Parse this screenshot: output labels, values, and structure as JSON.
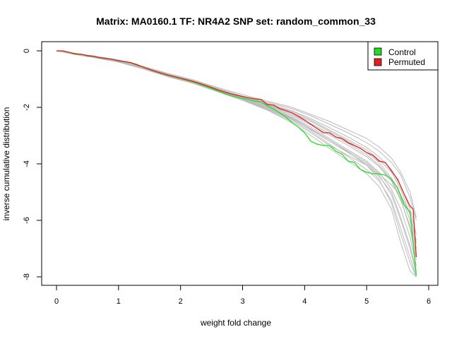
{
  "chart_data": {
    "type": "line",
    "title": "Matrix: MA0160.1 TF: NR4A2 SNP set: random_common_33",
    "xlabel": "weight fold change",
    "ylabel": "inverse cumulative distribution",
    "xlim": [
      0,
      6
    ],
    "ylim": [
      -8,
      0
    ],
    "xticks": [
      0,
      1,
      2,
      3,
      4,
      5,
      6
    ],
    "yticks": [
      0,
      -2,
      -4,
      -6,
      -8
    ],
    "grid": false,
    "legend_position": "top-right",
    "colors": {
      "control": "#22dd22",
      "permuted": "#dd2222",
      "background": "#bbbbbb"
    },
    "series": [
      {
        "name": "Control",
        "color": "#22dd22",
        "x": [
          0,
          0.1,
          0.2,
          0.3,
          0.4,
          0.5,
          0.6,
          0.7,
          0.8,
          0.9,
          1.0,
          1.1,
          1.2,
          1.3,
          1.4,
          1.5,
          1.6,
          1.8,
          2.0,
          2.2,
          2.4,
          2.6,
          2.8,
          3.0,
          3.1,
          3.2,
          3.3,
          3.4,
          3.5,
          3.6,
          3.7,
          3.8,
          3.9,
          4.0,
          4.1,
          4.2,
          4.3,
          4.4,
          4.5,
          4.6,
          4.7,
          4.8,
          4.9,
          5.0,
          5.1,
          5.2,
          5.3,
          5.4,
          5.5,
          5.6,
          5.7,
          5.75,
          5.8
        ],
        "values": [
          0,
          0,
          -0.05,
          -0.12,
          -0.12,
          -0.18,
          -0.2,
          -0.25,
          -0.27,
          -0.3,
          -0.36,
          -0.38,
          -0.42,
          -0.48,
          -0.58,
          -0.66,
          -0.74,
          -0.87,
          -0.98,
          -1.1,
          -1.25,
          -1.42,
          -1.58,
          -1.68,
          -1.72,
          -1.78,
          -1.8,
          -1.95,
          -2.05,
          -2.2,
          -2.35,
          -2.55,
          -2.7,
          -2.9,
          -3.2,
          -3.3,
          -3.35,
          -3.35,
          -3.55,
          -3.65,
          -3.9,
          -3.95,
          -4.2,
          -4.3,
          -4.35,
          -4.35,
          -4.4,
          -4.55,
          -4.85,
          -5.45,
          -5.7,
          -6.8,
          -7.95
        ]
      },
      {
        "name": "Permuted",
        "color": "#dd2222",
        "x": [
          0,
          0.1,
          0.2,
          0.3,
          0.4,
          0.5,
          0.6,
          0.7,
          0.8,
          0.9,
          1.0,
          1.1,
          1.2,
          1.3,
          1.4,
          1.5,
          1.6,
          1.8,
          2.0,
          2.2,
          2.4,
          2.6,
          2.8,
          3.0,
          3.1,
          3.2,
          3.3,
          3.4,
          3.5,
          3.6,
          3.7,
          3.8,
          3.9,
          4.0,
          4.1,
          4.2,
          4.3,
          4.4,
          4.5,
          4.6,
          4.7,
          4.8,
          4.9,
          5.0,
          5.1,
          5.2,
          5.3,
          5.4,
          5.5,
          5.6,
          5.7,
          5.75,
          5.8
        ],
        "values": [
          0,
          0,
          -0.05,
          -0.1,
          -0.12,
          -0.17,
          -0.19,
          -0.24,
          -0.27,
          -0.3,
          -0.35,
          -0.38,
          -0.42,
          -0.5,
          -0.58,
          -0.66,
          -0.73,
          -0.86,
          -0.97,
          -1.08,
          -1.22,
          -1.38,
          -1.52,
          -1.62,
          -1.66,
          -1.7,
          -1.72,
          -1.9,
          -1.92,
          -2.05,
          -2.12,
          -2.2,
          -2.32,
          -2.45,
          -2.6,
          -2.75,
          -2.9,
          -2.9,
          -3.05,
          -3.1,
          -3.25,
          -3.35,
          -3.45,
          -3.6,
          -3.7,
          -3.9,
          -3.95,
          -4.25,
          -4.55,
          -5.05,
          -5.5,
          -5.6,
          -7.3
        ]
      }
    ],
    "background_series": [
      {
        "x": [
          0,
          0.3,
          0.6,
          1.0,
          1.4,
          1.8,
          2.2,
          2.6,
          3.0,
          3.4,
          3.8,
          4.1,
          4.4,
          4.7,
          5.0,
          5.2,
          5.4,
          5.55,
          5.7,
          5.8
        ],
        "values": [
          0,
          -0.1,
          -0.2,
          -0.34,
          -0.56,
          -0.82,
          -1.05,
          -1.35,
          -1.6,
          -1.82,
          -2.05,
          -2.3,
          -2.6,
          -2.9,
          -3.25,
          -3.55,
          -3.95,
          -4.4,
          -5.2,
          -6.0
        ]
      },
      {
        "x": [
          0,
          0.3,
          0.6,
          1.0,
          1.4,
          1.8,
          2.2,
          2.6,
          3.0,
          3.4,
          3.8,
          4.1,
          4.4,
          4.7,
          5.0,
          5.2,
          5.4,
          5.55,
          5.7,
          5.8
        ],
        "values": [
          0,
          -0.12,
          -0.22,
          -0.38,
          -0.62,
          -0.9,
          -1.12,
          -1.42,
          -1.72,
          -2.05,
          -2.45,
          -2.85,
          -3.3,
          -3.75,
          -4.2,
          -4.6,
          -5.3,
          -6.3,
          -7.3,
          -8.0
        ]
      },
      {
        "x": [
          0,
          0.3,
          0.6,
          1.0,
          1.4,
          1.8,
          2.2,
          2.6,
          3.0,
          3.4,
          3.8,
          4.1,
          4.4,
          4.7,
          5.0,
          5.2,
          5.4,
          5.55,
          5.7,
          5.8
        ],
        "values": [
          0,
          -0.1,
          -0.18,
          -0.32,
          -0.55,
          -0.8,
          -1.02,
          -1.3,
          -1.55,
          -1.78,
          -2.0,
          -2.25,
          -2.5,
          -2.8,
          -3.1,
          -3.4,
          -3.8,
          -4.3,
          -5.0,
          -5.9
        ]
      },
      {
        "x": [
          0,
          0.3,
          0.6,
          1.0,
          1.4,
          1.8,
          2.2,
          2.6,
          3.0,
          3.4,
          3.8,
          4.1,
          4.4,
          4.7,
          5.0,
          5.2,
          5.4,
          5.55,
          5.7,
          5.8
        ],
        "values": [
          0,
          -0.11,
          -0.21,
          -0.36,
          -0.6,
          -0.88,
          -1.1,
          -1.4,
          -1.68,
          -1.98,
          -2.35,
          -2.7,
          -3.1,
          -3.5,
          -3.9,
          -4.3,
          -4.9,
          -5.6,
          -6.6,
          -7.6
        ]
      },
      {
        "x": [
          0,
          0.3,
          0.6,
          1.0,
          1.4,
          1.8,
          2.2,
          2.6,
          3.0,
          3.4,
          3.8,
          4.1,
          4.4,
          4.7,
          5.0,
          5.2,
          5.4,
          5.55,
          5.7,
          5.8
        ],
        "values": [
          0,
          -0.1,
          -0.2,
          -0.35,
          -0.58,
          -0.85,
          -1.08,
          -1.36,
          -1.64,
          -1.9,
          -2.2,
          -2.5,
          -2.85,
          -3.2,
          -3.6,
          -3.95,
          -4.5,
          -5.1,
          -6.0,
          -7.0
        ]
      },
      {
        "x": [
          0,
          0.3,
          0.6,
          1.0,
          1.4,
          1.8,
          2.2,
          2.6,
          3.0,
          3.4,
          3.8,
          4.1,
          4.4,
          4.7,
          5.0,
          5.2,
          5.4,
          5.55,
          5.7,
          5.8
        ],
        "values": [
          0,
          -0.13,
          -0.24,
          -0.4,
          -0.64,
          -0.92,
          -1.15,
          -1.45,
          -1.75,
          -2.1,
          -2.55,
          -3.0,
          -3.45,
          -3.9,
          -4.35,
          -4.8,
          -5.6,
          -6.8,
          -7.8,
          -8.0
        ]
      },
      {
        "x": [
          0,
          0.3,
          0.6,
          1.0,
          1.4,
          1.8,
          2.2,
          2.6,
          3.0,
          3.4,
          3.8,
          4.1,
          4.4,
          4.7,
          5.0,
          5.2,
          5.4,
          5.55,
          5.7,
          5.8
        ],
        "values": [
          0,
          -0.09,
          -0.19,
          -0.33,
          -0.56,
          -0.83,
          -1.05,
          -1.33,
          -1.6,
          -1.86,
          -2.12,
          -2.4,
          -2.72,
          -3.05,
          -3.42,
          -3.75,
          -4.2,
          -4.8,
          -5.6,
          -6.5
        ]
      },
      {
        "x": [
          0,
          0.3,
          0.6,
          1.0,
          1.4,
          1.8,
          2.2,
          2.6,
          3.0,
          3.4,
          3.8,
          4.1,
          4.4,
          4.7,
          5.0,
          5.2,
          5.4,
          5.55,
          5.7,
          5.8
        ],
        "values": [
          0,
          -0.12,
          -0.23,
          -0.39,
          -0.63,
          -0.9,
          -1.13,
          -1.43,
          -1.73,
          -2.08,
          -2.5,
          -2.9,
          -3.35,
          -3.7,
          -4.05,
          -4.45,
          -5.0,
          -5.9,
          -6.9,
          -7.8
        ]
      },
      {
        "x": [
          0,
          0.3,
          0.6,
          1.0,
          1.4,
          1.8,
          2.2,
          2.6,
          3.0,
          3.4,
          3.8,
          4.1,
          4.4,
          4.7,
          5.0,
          5.2,
          5.4,
          5.55,
          5.7,
          5.8
        ],
        "values": [
          0,
          -0.1,
          -0.2,
          -0.34,
          -0.57,
          -0.84,
          -1.06,
          -1.34,
          -1.62,
          -1.88,
          -2.15,
          -2.45,
          -2.8,
          -3.15,
          -3.5,
          -3.85,
          -4.3,
          -4.9,
          -5.8,
          -6.8
        ]
      },
      {
        "x": [
          0,
          0.3,
          0.6,
          1.0,
          1.4,
          1.8,
          2.2,
          2.6,
          3.0,
          3.4,
          3.8,
          4.1,
          4.4,
          4.7,
          5.0,
          5.2,
          5.4,
          5.55,
          5.7,
          5.8
        ],
        "values": [
          0,
          -0.11,
          -0.22,
          -0.37,
          -0.61,
          -0.89,
          -1.11,
          -1.41,
          -1.7,
          -2.0,
          -2.4,
          -2.8,
          -3.2,
          -3.6,
          -4.0,
          -4.4,
          -5.1,
          -6.0,
          -7.0,
          -7.9
        ]
      },
      {
        "x": [
          0,
          0.3,
          0.6,
          1.0,
          1.4,
          1.8,
          2.2,
          2.6,
          3.0,
          3.4,
          3.8,
          4.1,
          4.4,
          4.7,
          5.0,
          5.2,
          5.4,
          5.55,
          5.7,
          5.8
        ],
        "values": [
          0,
          -0.1,
          -0.21,
          -0.36,
          -0.6,
          -0.87,
          -1.09,
          -1.38,
          -1.66,
          -1.95,
          -2.3,
          -2.62,
          -2.98,
          -3.35,
          -3.75,
          -4.1,
          -4.6,
          -5.3,
          -6.2,
          -7.2
        ]
      },
      {
        "x": [
          0,
          0.3,
          0.6,
          1.0,
          1.4,
          1.8,
          2.2,
          2.6,
          3.0,
          3.4,
          3.8,
          4.1,
          4.4,
          4.7,
          5.0,
          5.2,
          5.4,
          5.55,
          5.7,
          5.8
        ],
        "values": [
          0,
          -0.12,
          -0.22,
          -0.38,
          -0.62,
          -0.9,
          -1.12,
          -1.42,
          -1.72,
          -2.03,
          -2.42,
          -2.78,
          -3.15,
          -3.55,
          -3.95,
          -4.35,
          -4.75,
          -5.1,
          -5.8,
          -6.7
        ]
      },
      {
        "x": [
          0,
          0.3,
          0.6,
          1.0,
          1.4,
          1.8,
          2.2,
          2.6,
          3.0,
          3.4,
          3.8,
          4.1,
          4.4,
          4.7,
          5.0,
          5.2,
          5.4,
          5.55,
          5.7,
          5.8
        ],
        "values": [
          0,
          -0.1,
          -0.2,
          -0.35,
          -0.58,
          -0.86,
          -1.08,
          -1.37,
          -1.64,
          -1.92,
          -2.25,
          -2.58,
          -2.92,
          -3.28,
          -3.68,
          -4.05,
          -4.55,
          -5.25,
          -6.3,
          -7.4
        ]
      },
      {
        "x": [
          0,
          0.3,
          0.6,
          1.0,
          1.4,
          1.8,
          2.2,
          2.6,
          3.0,
          3.4,
          3.8,
          4.1,
          4.4,
          4.7,
          5.0,
          5.2,
          5.4,
          5.55,
          5.7,
          5.8
        ],
        "values": [
          0,
          -0.11,
          -0.21,
          -0.37,
          -0.6,
          -0.88,
          -1.1,
          -1.4,
          -1.69,
          -1.99,
          -2.38,
          -2.75,
          -3.15,
          -3.58,
          -4.05,
          -4.55,
          -5.4,
          -6.5,
          -7.5,
          -8.0
        ]
      }
    ]
  },
  "legend": {
    "items": [
      {
        "label": "Control",
        "color": "#22dd22"
      },
      {
        "label": "Permuted",
        "color": "#dd2222"
      }
    ]
  }
}
